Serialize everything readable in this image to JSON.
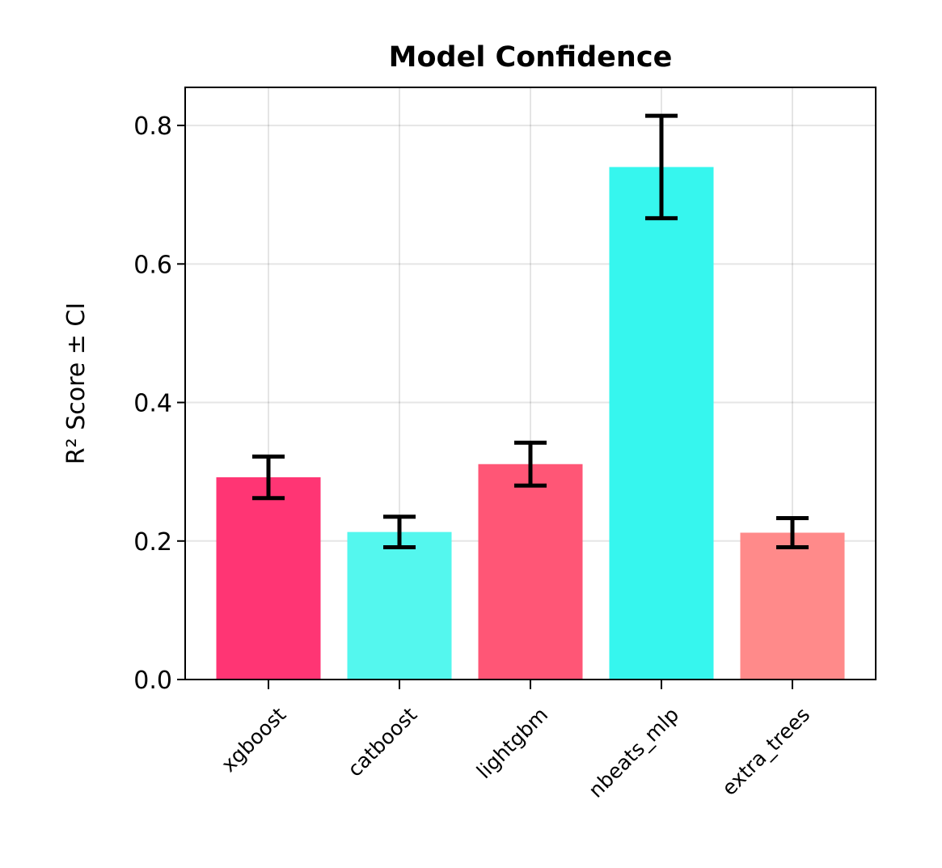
{
  "chart_data": {
    "type": "bar",
    "title": "Model Confidence",
    "xlabel": "",
    "ylabel": "R² Score ± CI",
    "categories": [
      "xgboost",
      "catboost",
      "lightgbm",
      "nbeats_mlp",
      "extra_trees"
    ],
    "values": [
      0.292,
      0.213,
      0.311,
      0.74,
      0.212
    ],
    "ci": [
      0.03,
      0.022,
      0.031,
      0.074,
      0.021
    ],
    "colors": [
      "#ff3574",
      "#54f7ee",
      "#ff5676",
      "#36f6ee",
      "#ff8a8a"
    ],
    "ylim": [
      0,
      0.855
    ],
    "yticks": [
      0.0,
      0.2,
      0.4,
      0.6,
      0.8
    ],
    "ytick_labels": [
      "0.0",
      "0.2",
      "0.4",
      "0.6",
      "0.8"
    ],
    "grid": true,
    "legend": "none"
  }
}
